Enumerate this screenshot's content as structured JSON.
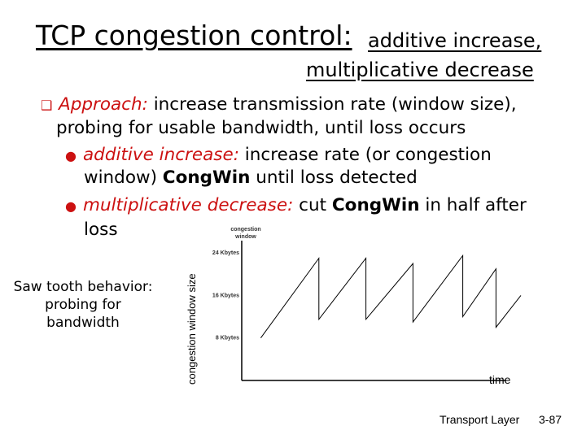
{
  "slide": {
    "title_main": "TCP congestion control:",
    "title_sub1": "additive increase,",
    "title_sub2": "multiplicative decrease",
    "approach_label": "Approach:",
    "approach_text_1": " increase transmission rate (window size),",
    "approach_text_2": "probing for usable bandwidth, until loss occurs",
    "ai_label": "additive increase:",
    "ai_text_1": " increase  rate (or congestion",
    "ai_text_2a": "window) ",
    "ai_congwin": "CongWin",
    "ai_text_2b": " until loss detected",
    "md_label": "multiplicative decrease:",
    "md_text_1": " cut ",
    "md_congwin": "CongWin",
    "md_text_2": " in half after",
    "md_text_3": "loss",
    "caption": "Saw tooth behavior: probing for bandwidth",
    "footer_label": "Transport Layer",
    "footer_page": "3-87"
  },
  "colors": {
    "accent": "#cc1111",
    "text": "#000000"
  },
  "chart_data": {
    "type": "line",
    "title": "congestion window",
    "xlabel": "time",
    "ylabel": "congestion window size",
    "y_ticks": [
      {
        "value": 8,
        "label": "8 Kbytes"
      },
      {
        "value": 16,
        "label": "16 Kbytes"
      },
      {
        "value": 24,
        "label": "24 Kbytes"
      }
    ],
    "ylim": [
      0,
      26
    ],
    "xlim": [
      0,
      100
    ],
    "series": [
      {
        "name": "congestion window",
        "points": [
          [
            6,
            8
          ],
          [
            27,
            23
          ],
          [
            27,
            11.5
          ],
          [
            44,
            23
          ],
          [
            44,
            11.5
          ],
          [
            61,
            22
          ],
          [
            61,
            11
          ],
          [
            79,
            23.5
          ],
          [
            79,
            12
          ],
          [
            91,
            21
          ],
          [
            91,
            10
          ],
          [
            100,
            16
          ]
        ]
      }
    ]
  }
}
